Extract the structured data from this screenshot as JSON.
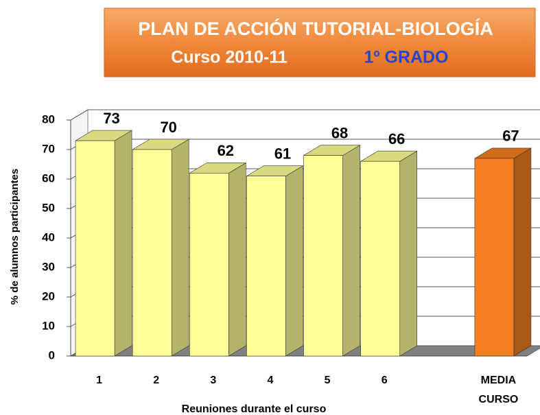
{
  "chart_data": {
    "type": "bar3d",
    "title": "PLAN DE ACCIÓN TUTORIAL-BIOLOGÍA",
    "subtitle": "Curso 2010-11",
    "grade": "1º GRADO",
    "categories": [
      "1",
      "2",
      "3",
      "4",
      "5",
      "6",
      null,
      "MEDIA CURSO"
    ],
    "values": [
      73,
      70,
      62,
      61,
      68,
      66,
      null,
      67
    ],
    "colors": [
      "#ffff99",
      "#ffff99",
      "#ffff99",
      "#ffff99",
      "#ffff99",
      "#ffff99",
      null,
      "#f47f20"
    ],
    "ylim": [
      0,
      80
    ],
    "yticks": [
      0,
      10,
      20,
      30,
      40,
      50,
      60,
      70,
      80
    ],
    "grid": true,
    "ylabel": "% de alumnos participantes",
    "xlabel": "Reuniones durante el curso"
  }
}
